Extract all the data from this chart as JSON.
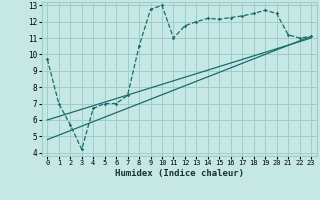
{
  "xlabel": "Humidex (Indice chaleur)",
  "bg_color": "#c5e8e5",
  "grid_color": "#a0cccc",
  "line_color": "#1a6b6b",
  "xlim": [
    -0.5,
    23.5
  ],
  "ylim": [
    3.8,
    13.2
  ],
  "xticks": [
    0,
    1,
    2,
    3,
    4,
    5,
    6,
    7,
    8,
    9,
    10,
    11,
    12,
    13,
    14,
    15,
    16,
    17,
    18,
    19,
    20,
    21,
    22,
    23
  ],
  "yticks": [
    4,
    5,
    6,
    7,
    8,
    9,
    10,
    11,
    12,
    13
  ],
  "curve1_x": [
    0,
    1,
    2,
    3,
    4,
    5,
    6,
    7,
    8,
    9,
    10,
    11,
    12,
    13,
    14,
    15,
    16,
    17,
    18,
    19,
    20,
    21,
    22,
    23
  ],
  "curve1_y": [
    9.7,
    7.0,
    5.7,
    4.2,
    6.7,
    7.0,
    7.0,
    7.5,
    10.5,
    12.75,
    13.0,
    11.0,
    11.75,
    12.0,
    12.2,
    12.15,
    12.25,
    12.35,
    12.5,
    12.7,
    12.5,
    11.2,
    11.0,
    11.1
  ],
  "line1_x": [
    0,
    23
  ],
  "line1_y": [
    4.8,
    11.1
  ],
  "line2_x": [
    0,
    23
  ],
  "line2_y": [
    6.0,
    11.0
  ]
}
